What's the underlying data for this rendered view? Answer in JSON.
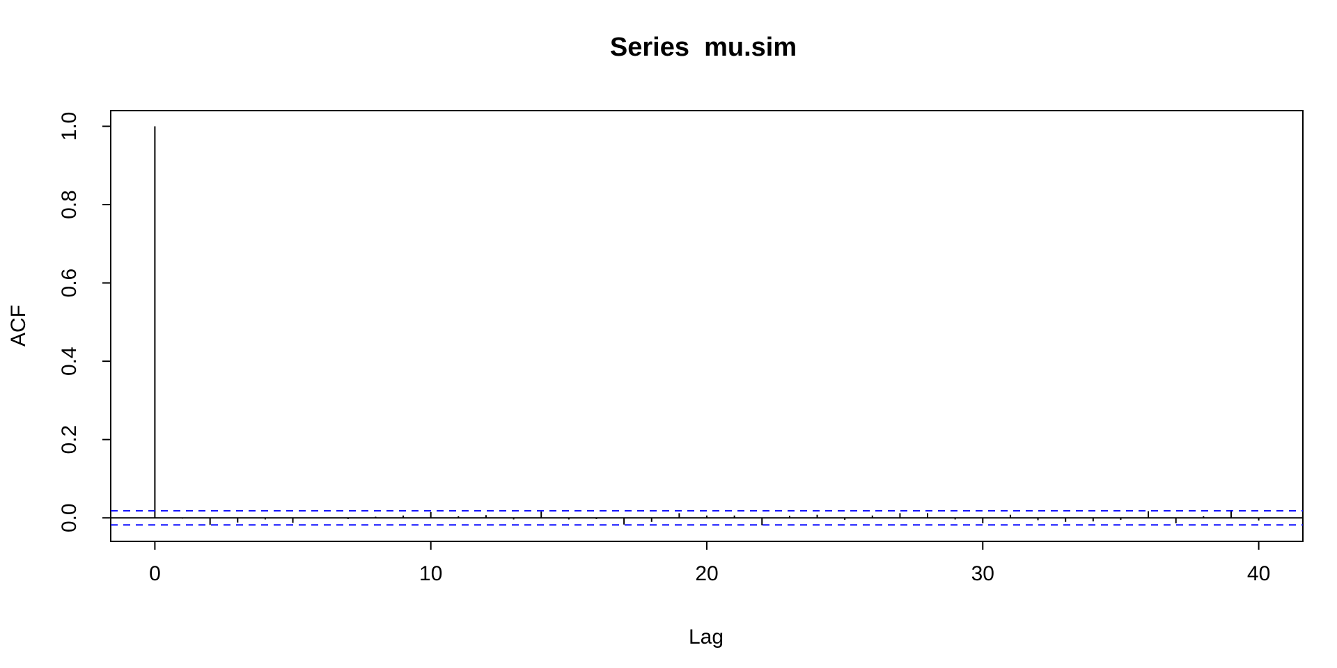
{
  "chart_data": {
    "type": "bar",
    "title": "Series  mu.sim",
    "xlabel": "Lag",
    "ylabel": "ACF",
    "xlim": [
      -1.6,
      41.6
    ],
    "ylim": [
      -0.06,
      1.04
    ],
    "x_ticks": [
      0,
      10,
      20,
      30,
      40
    ],
    "x_tick_labels": [
      "0",
      "10",
      "20",
      "30",
      "40"
    ],
    "y_ticks": [
      0.0,
      0.2,
      0.4,
      0.6,
      0.8,
      1.0
    ],
    "y_tick_labels": [
      "0.0",
      "0.2",
      "0.4",
      "0.6",
      "0.8",
      "1.0"
    ],
    "grid": false,
    "legend": "none",
    "series": [
      {
        "lags": [
          0,
          1,
          2,
          3,
          4,
          5,
          6,
          7,
          8,
          9,
          10,
          11,
          12,
          13,
          14,
          15,
          16,
          17,
          18,
          19,
          20,
          21,
          22,
          23,
          24,
          25,
          26,
          27,
          28,
          29,
          30,
          31,
          32,
          33,
          34,
          35,
          36,
          37,
          38,
          39,
          40
        ],
        "values": [
          1.0,
          -0.002,
          -0.018,
          -0.012,
          -0.004,
          -0.013,
          0.001,
          -0.003,
          0.003,
          0.006,
          0.015,
          0.004,
          0.007,
          -0.004,
          0.016,
          -0.004,
          -0.003,
          -0.017,
          -0.01,
          0.012,
          0.006,
          0.006,
          -0.019,
          0.005,
          0.008,
          -0.005,
          0.006,
          0.012,
          0.012,
          -0.004,
          -0.014,
          0.008,
          -0.006,
          -0.01,
          -0.009,
          -0.005,
          0.017,
          -0.014,
          0.004,
          0.02,
          -0.007
        ],
        "color": "#000000"
      }
    ],
    "confidence_bound": 0.018,
    "confidence_color": "#0000ff"
  }
}
